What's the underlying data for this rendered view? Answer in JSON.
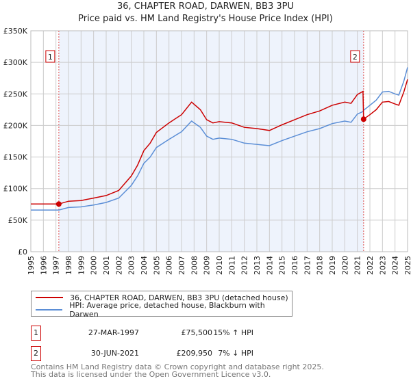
{
  "title": "36, CHAPTER ROAD, DARWEN, BB3 3PU",
  "subtitle": "Price paid vs. HM Land Registry's House Price Index (HPI)",
  "chart_data": {
    "type": "line",
    "title": "36, CHAPTER ROAD, DARWEN, BB3 3PU",
    "subtitle": "Price paid vs. HM Land Registry's House Price Index (HPI)",
    "xlabel": "",
    "ylabel": "",
    "xlim": [
      1995,
      2025
    ],
    "ylim": [
      0,
      350000
    ],
    "y_ticks": [
      0,
      50000,
      100000,
      150000,
      200000,
      250000,
      300000,
      350000
    ],
    "y_tick_labels": [
      "£0",
      "£50K",
      "£100K",
      "£150K",
      "£200K",
      "£250K",
      "£300K",
      "£350K"
    ],
    "x_ticks": [
      "1995",
      "1996",
      "1997",
      "1998",
      "1999",
      "2000",
      "2001",
      "2002",
      "2003",
      "2004",
      "2005",
      "2006",
      "2007",
      "2008",
      "2009",
      "2010",
      "2011",
      "2012",
      "2013",
      "2014",
      "2015",
      "2016",
      "2017",
      "2018",
      "2019",
      "2020",
      "2021",
      "2022",
      "2023",
      "2024",
      "2025"
    ],
    "grid": true,
    "legend_placement": "below",
    "series": [
      {
        "name": "36, CHAPTER ROAD, DARWEN, BB3 3PU (detached house)",
        "color": "#cc0000",
        "x": [
          1995,
          1996,
          1997.23,
          1998,
          1999,
          2000,
          2001,
          2002,
          2003,
          2003.5,
          2004,
          2004.5,
          2005,
          2006,
          2007,
          2007.8,
          2008.5,
          2009,
          2009.5,
          2010,
          2011,
          2012,
          2013,
          2014,
          2015,
          2016,
          2017,
          2018,
          2019,
          2020,
          2020.5,
          2021,
          2021.45,
          2021.5,
          2022,
          2022.5,
          2023,
          2023.5,
          2024,
          2024.3,
          2024.7,
          2025
        ],
        "y": [
          75500,
          75500,
          75500,
          80000,
          81000,
          85000,
          89000,
          97000,
          120000,
          137000,
          160000,
          172000,
          189000,
          204000,
          217000,
          237000,
          225000,
          209000,
          204000,
          206000,
          204000,
          197000,
          195000,
          192000,
          201000,
          209000,
          217000,
          223000,
          232000,
          237000,
          235000,
          249000,
          254000,
          209950,
          217000,
          225000,
          237000,
          238000,
          234000,
          232000,
          253000,
          273000
        ]
      },
      {
        "name": "HPI: Average price, detached house, Blackburn with Darwen",
        "color": "#5b8ed6",
        "x": [
          1995,
          1996,
          1997.23,
          1998,
          1999,
          2000,
          2001,
          2002,
          2003,
          2003.5,
          2004,
          2004.5,
          2005,
          2006,
          2007,
          2007.8,
          2008.5,
          2009,
          2009.5,
          2010,
          2011,
          2012,
          2013,
          2014,
          2015,
          2016,
          2017,
          2018,
          2019,
          2020,
          2020.5,
          2021,
          2021.45,
          2021.5,
          2022,
          2022.5,
          2023,
          2023.5,
          2024,
          2024.3,
          2024.7,
          2025
        ],
        "y": [
          66000,
          66000,
          66000,
          70000,
          71000,
          74000,
          78000,
          85000,
          105000,
          120000,
          140000,
          150000,
          165000,
          178000,
          190000,
          207000,
          197000,
          183000,
          178000,
          180000,
          178000,
          172000,
          170000,
          168000,
          176000,
          183000,
          190000,
          195000,
          203000,
          207000,
          205000,
          218000,
          222000,
          224000,
          232000,
          240000,
          253000,
          254000,
          250000,
          248000,
          270000,
          292000
        ]
      }
    ],
    "annotations": [
      {
        "label": "1",
        "x": 1997.23,
        "y": 75500
      },
      {
        "label": "2",
        "x": 2021.5,
        "y": 209950
      }
    ]
  },
  "legend": [
    {
      "label": "36, CHAPTER ROAD, DARWEN, BB3 3PU (detached house)",
      "color": "#cc0000"
    },
    {
      "label": "HPI: Average price, detached house, Blackburn with Darwen",
      "color": "#5b8ed6"
    }
  ],
  "sales": [
    {
      "num": "1",
      "date": "27-MAR-1997",
      "price": "£75,500",
      "hpi": "15% ↑ HPI"
    },
    {
      "num": "2",
      "date": "30-JUN-2021",
      "price": "£209,950",
      "hpi": "7% ↓ HPI"
    }
  ],
  "footer": {
    "line1": "Contains HM Land Registry data © Crown copyright and database right 2025.",
    "line2": "This data is licensed under the Open Government Licence v3.0."
  }
}
